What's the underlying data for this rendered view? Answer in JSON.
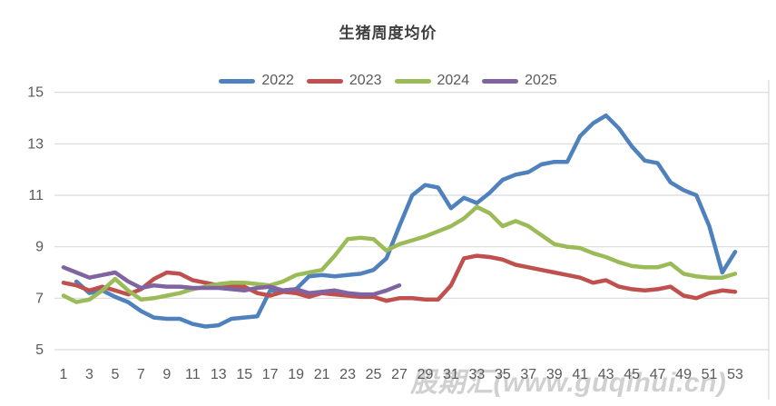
{
  "watermark": {
    "text": "股期汇(www.guqihui.cn)"
  },
  "chart_data": {
    "type": "line",
    "title": "生猪周度均价",
    "xlabel": "",
    "ylabel": "",
    "xlim": [
      1,
      53
    ],
    "ylim": [
      5,
      15
    ],
    "grid": true,
    "legend_position": "top-center",
    "x_ticks": [
      1,
      3,
      5,
      7,
      9,
      11,
      13,
      15,
      17,
      19,
      21,
      23,
      25,
      27,
      29,
      31,
      33,
      35,
      37,
      39,
      41,
      43,
      45,
      47,
      49,
      51,
      53
    ],
    "y_ticks": [
      5,
      7,
      9,
      11,
      13,
      15
    ],
    "axis_text_color": "#595959",
    "gridline_color": "#d9d9d9",
    "series": [
      {
        "name": "2022",
        "color": "#4F81BD",
        "start_week": 2,
        "values": [
          7.65,
          7.2,
          7.3,
          7.05,
          6.85,
          6.5,
          6.25,
          6.2,
          6.2,
          6.0,
          5.9,
          5.95,
          6.2,
          6.25,
          6.3,
          7.3,
          7.3,
          7.35,
          7.85,
          7.9,
          7.85,
          7.9,
          7.95,
          8.1,
          8.55,
          9.8,
          11.0,
          11.4,
          11.3,
          10.5,
          10.9,
          10.7,
          11.1,
          11.6,
          11.8,
          11.9,
          12.2,
          12.3,
          12.3,
          13.3,
          13.8,
          14.1,
          13.6,
          12.9,
          12.35,
          12.25,
          11.5,
          11.2,
          11.0,
          9.8,
          8.0,
          8.8
        ]
      },
      {
        "name": "2023",
        "color": "#C0504D",
        "start_week": 1,
        "values": [
          7.6,
          7.5,
          7.3,
          7.45,
          7.3,
          7.15,
          7.35,
          7.75,
          8.0,
          7.95,
          7.7,
          7.6,
          7.5,
          7.5,
          7.45,
          7.2,
          7.1,
          7.25,
          7.2,
          7.05,
          7.2,
          7.15,
          7.1,
          7.05,
          7.05,
          6.9,
          7.0,
          7.0,
          6.95,
          6.95,
          7.5,
          8.55,
          8.65,
          8.6,
          8.5,
          8.3,
          8.2,
          8.1,
          8.0,
          7.9,
          7.8,
          7.6,
          7.7,
          7.45,
          7.35,
          7.3,
          7.35,
          7.45,
          7.1,
          7.0,
          7.2,
          7.3,
          7.25
        ]
      },
      {
        "name": "2024",
        "color": "#9BBB59",
        "start_week": 1,
        "values": [
          7.1,
          6.85,
          6.95,
          7.3,
          7.75,
          7.3,
          6.95,
          7.0,
          7.1,
          7.2,
          7.35,
          7.45,
          7.55,
          7.6,
          7.6,
          7.55,
          7.5,
          7.65,
          7.9,
          8.0,
          8.1,
          8.65,
          9.3,
          9.35,
          9.3,
          8.85,
          9.1,
          9.25,
          9.4,
          9.6,
          9.8,
          10.1,
          10.55,
          10.3,
          9.8,
          10.0,
          9.8,
          9.45,
          9.1,
          9.0,
          8.95,
          8.75,
          8.6,
          8.4,
          8.25,
          8.2,
          8.2,
          8.35,
          7.95,
          7.85,
          7.8,
          7.8,
          7.95
        ]
      },
      {
        "name": "2025",
        "color": "#8064A2",
        "start_week": 1,
        "values": [
          8.2,
          8.0,
          7.8,
          7.9,
          8.0,
          7.65,
          7.4,
          7.5,
          7.45,
          7.45,
          7.4,
          7.4,
          7.4,
          7.35,
          7.3,
          7.4,
          7.45,
          7.3,
          7.35,
          7.2,
          7.25,
          7.3,
          7.2,
          7.15,
          7.15,
          7.3,
          7.5
        ]
      }
    ]
  }
}
